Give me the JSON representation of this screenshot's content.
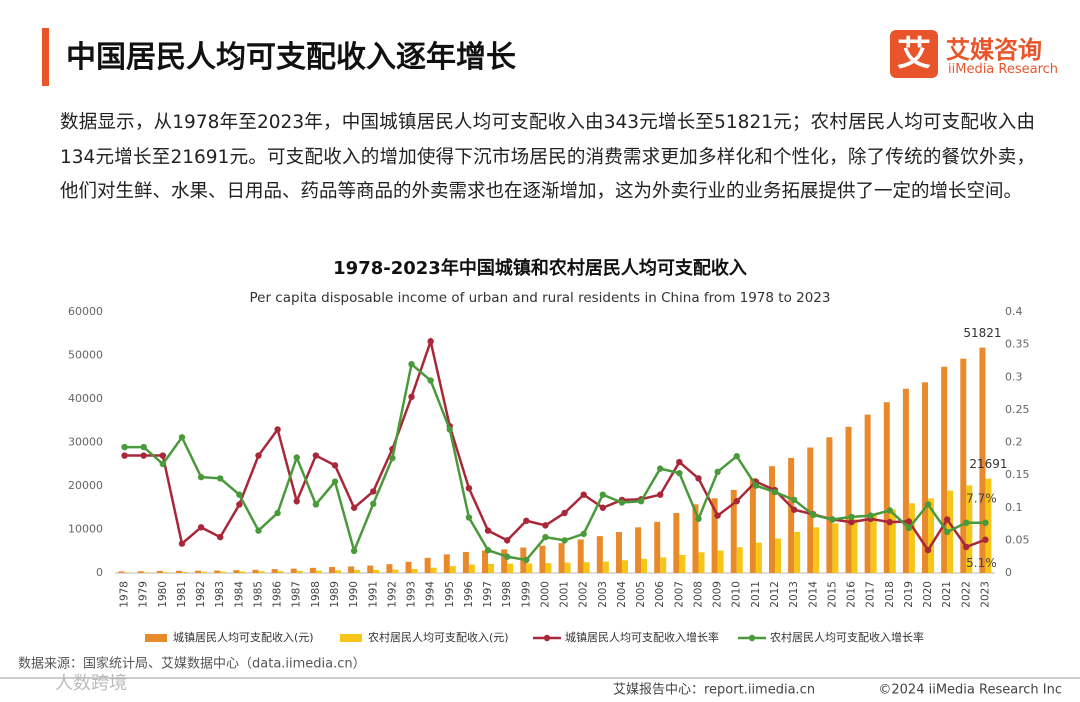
{
  "header": {
    "title": "中国居民人均可支配收入逐年增长",
    "logo_char": "艾",
    "logo_cn": "艾媒咨询",
    "logo_en": "iiMedia Research"
  },
  "paragraph": "数据显示，从1978年至2023年，中国城镇居民人均可支配收入由343元增长至51821元；农村居民人均可支配收入由134元增长至21691元。可支配收入的增加使得下沉市场居民的消费需求更加多样化和个性化，除了传统的餐饮外卖，他们对生鲜、水果、日用品、药品等商品的外卖需求也在逐渐增加，这为外卖行业的业务拓展提供了一定的增长空间。",
  "chart_data": {
    "type": "bar",
    "title": "1978-2023年中国城镇和农村居民人均可支配收入",
    "subtitle": "Per capita disposable income of urban and rural residents in China from 1978 to 2023",
    "categories": [
      "1978",
      "1979",
      "1980",
      "1981",
      "1982",
      "1983",
      "1984",
      "1985",
      "1986",
      "1987",
      "1988",
      "1989",
      "1990",
      "1991",
      "1992",
      "1993",
      "1994",
      "1995",
      "1996",
      "1997",
      "1998",
      "1999",
      "2000",
      "2001",
      "2002",
      "2003",
      "2004",
      "2005",
      "2006",
      "2007",
      "2008",
      "2009",
      "2010",
      "2011",
      "2012",
      "2013",
      "2014",
      "2015",
      "2016",
      "2017",
      "2018",
      "2019",
      "2020",
      "2021",
      "2022",
      "2023"
    ],
    "ylim": [
      0,
      60000
    ],
    "yticks": [
      0,
      10000,
      20000,
      30000,
      40000,
      50000,
      60000
    ],
    "y2lim": [
      0,
      0.4
    ],
    "y2ticks": [
      0,
      0.05,
      0.1,
      0.15,
      0.2,
      0.25,
      0.3,
      0.35,
      0.4
    ],
    "series": [
      {
        "name": "城镇居民人均可支配收入(元)",
        "type": "bar",
        "color": "#e8892a",
        "values": [
          343,
          405,
          478,
          500,
          535,
          564,
          652,
          739,
          900,
          1002,
          1180,
          1374,
          1510,
          1701,
          2027,
          2577,
          3496,
          4283,
          4839,
          5160,
          5425,
          5854,
          6280,
          6860,
          7703,
          8472,
          9422,
          10493,
          11759,
          13786,
          15781,
          17175,
          19109,
          21810,
          24565,
          26467,
          28844,
          31195,
          33616,
          36396,
          39251,
          42359,
          43834,
          47412,
          49283,
          51821
        ],
        "value_labels": [
          null,
          null,
          null,
          null,
          null,
          null,
          null,
          null,
          null,
          null,
          null,
          null,
          null,
          null,
          null,
          null,
          null,
          null,
          null,
          null,
          null,
          null,
          null,
          null,
          null,
          null,
          null,
          null,
          null,
          null,
          null,
          null,
          null,
          null,
          null,
          null,
          null,
          null,
          null,
          null,
          null,
          null,
          null,
          null,
          null,
          "51821"
        ]
      },
      {
        "name": "农村居民人均可支配收入(元)",
        "type": "bar",
        "color": "#f5c518",
        "values": [
          134,
          160,
          191,
          223,
          270,
          310,
          355,
          398,
          424,
          463,
          545,
          602,
          686,
          709,
          784,
          922,
          1221,
          1578,
          1926,
          2090,
          2162,
          2210,
          2253,
          2366,
          2476,
          2622,
          2936,
          3255,
          3587,
          4140,
          4761,
          5153,
          5919,
          6977,
          7917,
          9430,
          10489,
          11422,
          12363,
          13432,
          14617,
          16021,
          17131,
          18931,
          20133,
          21691
        ],
        "value_labels": [
          null,
          null,
          null,
          null,
          null,
          null,
          null,
          null,
          null,
          null,
          null,
          null,
          null,
          null,
          null,
          null,
          null,
          null,
          null,
          null,
          null,
          null,
          null,
          null,
          null,
          null,
          null,
          null,
          null,
          null,
          null,
          null,
          null,
          null,
          null,
          null,
          null,
          null,
          null,
          null,
          null,
          null,
          null,
          null,
          null,
          "21691"
        ]
      },
      {
        "name": "城镇居民人均可支配收入增长率",
        "type": "line",
        "axis": "y2",
        "color": "#a8283a",
        "values": [
          0.18,
          0.18,
          0.18,
          0.045,
          0.07,
          0.055,
          0.105,
          0.18,
          0.22,
          0.11,
          0.18,
          0.165,
          0.1,
          0.125,
          0.19,
          0.27,
          0.355,
          0.225,
          0.13,
          0.065,
          0.05,
          0.08,
          0.073,
          0.092,
          0.12,
          0.1,
          0.112,
          0.113,
          0.12,
          0.17,
          0.145,
          0.088,
          0.11,
          0.14,
          0.127,
          0.097,
          0.09,
          0.082,
          0.078,
          0.083,
          0.078,
          0.079,
          0.035,
          0.082,
          0.04,
          0.051
        ],
        "value_labels": [
          null,
          null,
          null,
          null,
          null,
          null,
          null,
          null,
          null,
          null,
          null,
          null,
          null,
          null,
          null,
          null,
          null,
          null,
          null,
          null,
          null,
          null,
          null,
          null,
          null,
          null,
          null,
          null,
          null,
          null,
          null,
          null,
          null,
          null,
          null,
          null,
          null,
          null,
          null,
          null,
          null,
          null,
          null,
          null,
          null,
          "5.1%"
        ]
      },
      {
        "name": "农村居民人均可支配收入增长率",
        "type": "line",
        "axis": "y2",
        "color": "#4a9a3c",
        "values": [
          0.193,
          0.193,
          0.167,
          0.208,
          0.147,
          0.145,
          0.12,
          0.065,
          0.092,
          0.177,
          0.105,
          0.14,
          0.034,
          0.106,
          0.176,
          0.32,
          0.295,
          0.22,
          0.085,
          0.035,
          0.025,
          0.02,
          0.055,
          0.05,
          0.06,
          0.12,
          0.108,
          0.11,
          0.16,
          0.153,
          0.083,
          0.155,
          0.179,
          0.134,
          0.124,
          0.112,
          0.089,
          0.082,
          0.086,
          0.088,
          0.096,
          0.069,
          0.105,
          0.063,
          0.077,
          0.077
        ],
        "value_labels": [
          null,
          null,
          null,
          null,
          null,
          null,
          null,
          null,
          null,
          null,
          null,
          null,
          null,
          null,
          null,
          null,
          null,
          null,
          null,
          null,
          null,
          null,
          null,
          null,
          null,
          null,
          null,
          null,
          null,
          null,
          null,
          null,
          null,
          null,
          null,
          null,
          null,
          null,
          null,
          null,
          null,
          null,
          null,
          null,
          null,
          "7.7%"
        ]
      }
    ]
  },
  "source": "数据来源：国家统计局、艾媒数据中心（data.iimedia.cn）",
  "watermark": "人数跨境",
  "footer": {
    "center": "艾媒报告中心：report.iimedia.cn",
    "right": "©2024  iiMedia Research  Inc"
  }
}
